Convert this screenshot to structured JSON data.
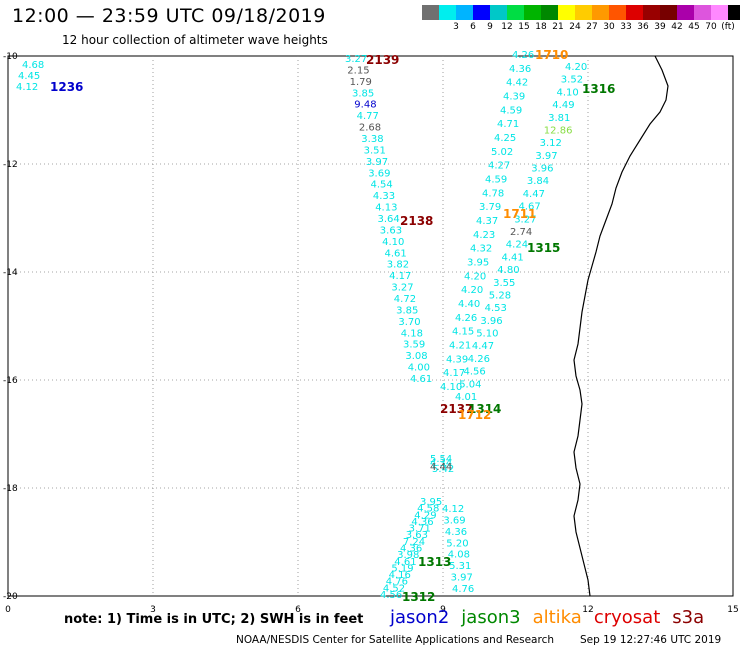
{
  "header": {
    "title": "12:00 — 23:59 UTC 09/18/2019",
    "subtitle": "12 hour collection of altimeter wave heights"
  },
  "colorbar": {
    "unit_label": "(ft)",
    "colors": [
      "#707070",
      "#00eeee",
      "#00b4ff",
      "#0000ff",
      "#00c8c8",
      "#00dd44",
      "#00b400",
      "#008800",
      "#ffff00",
      "#ffcc00",
      "#ff9900",
      "#ff5500",
      "#dd0000",
      "#990000",
      "#770000",
      "#aa00aa",
      "#dd55dd",
      "#ff88ff",
      "#000000"
    ],
    "labels": [
      "3",
      "6",
      "9",
      "12",
      "15",
      "18",
      "21",
      "24",
      "27",
      "30",
      "33",
      "36",
      "39",
      "42",
      "45",
      "70"
    ]
  },
  "map": {
    "x_ticks": [
      "0",
      "3",
      "6",
      "9",
      "12",
      "15"
    ],
    "y_ticks": [
      "-10",
      "-12",
      "-14",
      "-16",
      "-18",
      "-20"
    ],
    "pass_labels": [
      {
        "text": "1236",
        "color": "#0000cc"
      },
      {
        "text": "2139",
        "color": "#8b0000"
      },
      {
        "text": "1710",
        "color": "#ff8c00"
      },
      {
        "text": "1316",
        "color": "#007700"
      },
      {
        "text": "2138",
        "color": "#8b0000"
      },
      {
        "text": "1711",
        "color": "#ff8c00"
      },
      {
        "text": "1315",
        "color": "#007700"
      },
      {
        "text": "2137",
        "color": "#8b0000"
      },
      {
        "text": "1314",
        "color": "#007700"
      },
      {
        "text": "1712",
        "color": "#ff8c00"
      },
      {
        "text": "1313",
        "color": "#007700"
      },
      {
        "text": "1312",
        "color": "#007700"
      }
    ],
    "swh_values": [
      {
        "v": "4.68",
        "c": "#00e5e5"
      },
      {
        "v": "4.45",
        "c": "#00e5e5"
      },
      {
        "v": "4.12",
        "c": "#00e5e5"
      },
      {
        "v": "3.27",
        "c": "#00e5e5"
      },
      {
        "v": "2.15",
        "c": "#555555"
      },
      {
        "v": "1.79",
        "c": "#555555"
      },
      {
        "v": "3.85",
        "c": "#00e5e5"
      },
      {
        "v": "9.48",
        "c": "#0000cc"
      },
      {
        "v": "4.77",
        "c": "#00e5e5"
      },
      {
        "v": "2.68",
        "c": "#555555"
      },
      {
        "v": "3.38",
        "c": "#00e5e5"
      },
      {
        "v": "3.51",
        "c": "#00e5e5"
      },
      {
        "v": "3.97",
        "c": "#00e5e5"
      },
      {
        "v": "3.69",
        "c": "#00e5e5"
      },
      {
        "v": "4.54",
        "c": "#00e5e5"
      },
      {
        "v": "4.33",
        "c": "#00e5e5"
      },
      {
        "v": "4.13",
        "c": "#00e5e5"
      },
      {
        "v": "3.64",
        "c": "#00e5e5"
      },
      {
        "v": "3.63",
        "c": "#00e5e5"
      },
      {
        "v": "4.10",
        "c": "#00e5e5"
      },
      {
        "v": "4.61",
        "c": "#00e5e5"
      },
      {
        "v": "3.82",
        "c": "#00e5e5"
      },
      {
        "v": "4.17",
        "c": "#00e5e5"
      },
      {
        "v": "3.27",
        "c": "#00e5e5"
      },
      {
        "v": "4.72",
        "c": "#00e5e5"
      },
      {
        "v": "3.85",
        "c": "#00e5e5"
      },
      {
        "v": "3.70",
        "c": "#00e5e5"
      },
      {
        "v": "4.18",
        "c": "#00e5e5"
      },
      {
        "v": "3.59",
        "c": "#00e5e5"
      },
      {
        "v": "3.08",
        "c": "#00e5e5"
      },
      {
        "v": "4.00",
        "c": "#00e5e5"
      },
      {
        "v": "4.61",
        "c": "#00e5e5"
      },
      {
        "v": "4.26",
        "c": "#00e5e5"
      },
      {
        "v": "4.36",
        "c": "#00e5e5"
      },
      {
        "v": "4.42",
        "c": "#00e5e5"
      },
      {
        "v": "4.39",
        "c": "#00e5e5"
      },
      {
        "v": "4.59",
        "c": "#00e5e5"
      },
      {
        "v": "4.71",
        "c": "#00e5e5"
      },
      {
        "v": "4.25",
        "c": "#00e5e5"
      },
      {
        "v": "5.02",
        "c": "#00e5e5"
      },
      {
        "v": "4.27",
        "c": "#00e5e5"
      },
      {
        "v": "4.59",
        "c": "#00e5e5"
      },
      {
        "v": "4.78",
        "c": "#00e5e5"
      },
      {
        "v": "3.79",
        "c": "#00e5e5"
      },
      {
        "v": "4.37",
        "c": "#00e5e5"
      },
      {
        "v": "4.23",
        "c": "#00e5e5"
      },
      {
        "v": "4.32",
        "c": "#00e5e5"
      },
      {
        "v": "3.95",
        "c": "#00e5e5"
      },
      {
        "v": "4.20",
        "c": "#00e5e5"
      },
      {
        "v": "4.20",
        "c": "#00e5e5"
      },
      {
        "v": "4.40",
        "c": "#00e5e5"
      },
      {
        "v": "4.26",
        "c": "#00e5e5"
      },
      {
        "v": "4.15",
        "c": "#00e5e5"
      },
      {
        "v": "4.21",
        "c": "#00e5e5"
      },
      {
        "v": "4.39",
        "c": "#00e5e5"
      },
      {
        "v": "4.17",
        "c": "#00e5e5"
      },
      {
        "v": "4.10",
        "c": "#00e5e5"
      },
      {
        "v": "4.20",
        "c": "#00e5e5"
      },
      {
        "v": "3.52",
        "c": "#00e5e5"
      },
      {
        "v": "4.10",
        "c": "#00e5e5"
      },
      {
        "v": "4.49",
        "c": "#00e5e5"
      },
      {
        "v": "3.81",
        "c": "#00e5e5"
      },
      {
        "v": "12.86",
        "c": "#88dd44"
      },
      {
        "v": "3.12",
        "c": "#00e5e5"
      },
      {
        "v": "3.97",
        "c": "#00e5e5"
      },
      {
        "v": "3.96",
        "c": "#00e5e5"
      },
      {
        "v": "3.84",
        "c": "#00e5e5"
      },
      {
        "v": "4.47",
        "c": "#00e5e5"
      },
      {
        "v": "4.67",
        "c": "#00e5e5"
      },
      {
        "v": "3.27",
        "c": "#00e5e5"
      },
      {
        "v": "2.74",
        "c": "#555555"
      },
      {
        "v": "4.24",
        "c": "#00e5e5"
      },
      {
        "v": "4.41",
        "c": "#00e5e5"
      },
      {
        "v": "4.80",
        "c": "#00e5e5"
      },
      {
        "v": "3.55",
        "c": "#00e5e5"
      },
      {
        "v": "5.28",
        "c": "#00e5e5"
      },
      {
        "v": "4.53",
        "c": "#00e5e5"
      },
      {
        "v": "3.96",
        "c": "#00e5e5"
      },
      {
        "v": "5.10",
        "c": "#00e5e5"
      },
      {
        "v": "4.47",
        "c": "#00e5e5"
      },
      {
        "v": "4.26",
        "c": "#00e5e5"
      },
      {
        "v": "4.56",
        "c": "#00e5e5"
      },
      {
        "v": "5.04",
        "c": "#00e5e5"
      },
      {
        "v": "4.01",
        "c": "#00e5e5"
      },
      {
        "v": "3.95",
        "c": "#00e5e5"
      },
      {
        "v": "4.58",
        "c": "#00e5e5"
      },
      {
        "v": "4.29",
        "c": "#00e5e5"
      },
      {
        "v": "4.36",
        "c": "#00e5e5"
      },
      {
        "v": "3.71",
        "c": "#00e5e5"
      },
      {
        "v": "3.63",
        "c": "#00e5e5"
      },
      {
        "v": "7.24",
        "c": "#00e5e5"
      },
      {
        "v": "4.36",
        "c": "#00e5e5"
      },
      {
        "v": "3.98",
        "c": "#00e5e5"
      },
      {
        "v": "4.61",
        "c": "#00e5e5"
      },
      {
        "v": "5.19",
        "c": "#00e5e5"
      },
      {
        "v": "4.16",
        "c": "#00e5e5"
      },
      {
        "v": "4.76",
        "c": "#00e5e5"
      },
      {
        "v": "4.52",
        "c": "#00e5e5"
      },
      {
        "v": "4.56",
        "c": "#00e5e5"
      },
      {
        "v": "4.12",
        "c": "#00e5e5"
      },
      {
        "v": "3.69",
        "c": "#00e5e5"
      },
      {
        "v": "4.36",
        "c": "#00e5e5"
      },
      {
        "v": "5.20",
        "c": "#00e5e5"
      },
      {
        "v": "4.08",
        "c": "#00e5e5"
      },
      {
        "v": "5.31",
        "c": "#00e5e5"
      },
      {
        "v": "3.97",
        "c": "#00e5e5"
      },
      {
        "v": "4.76",
        "c": "#00e5e5"
      },
      {
        "v": "5.42",
        "c": "#00e5e5"
      },
      {
        "v": "5.54",
        "c": "#00e5e5"
      },
      {
        "v": "4.34",
        "c": "#00e5e5"
      },
      {
        "v": "4.44",
        "c": "#555555"
      }
    ]
  },
  "footer": {
    "note": "note: 1) Time is in UTC; 2) SWH is in feet",
    "legend": [
      {
        "name": "jason2",
        "color": "#0000cc"
      },
      {
        "name": "jason3",
        "color": "#008800"
      },
      {
        "name": "altika",
        "color": "#ff8c00"
      },
      {
        "name": "cryosat",
        "color": "#dd0000"
      },
      {
        "name": "s3a",
        "color": "#8b0000"
      }
    ],
    "credit": "NOAA/NESDIS Center for Satellite Applications and Research",
    "timestamp": "Sep 19 12:27:46 UTC 2019"
  }
}
